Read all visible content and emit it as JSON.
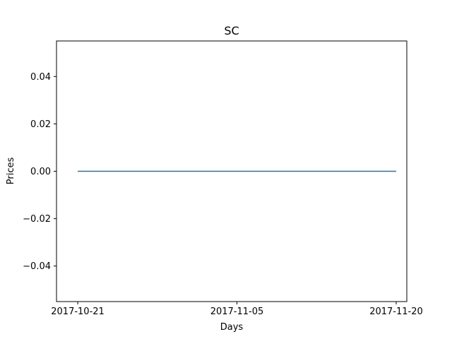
{
  "chart_data": {
    "type": "line",
    "title": "SC",
    "xlabel": "Days",
    "ylabel": "Prices",
    "x": [
      "2017-10-21",
      "2017-10-23",
      "2017-10-25",
      "2017-10-27",
      "2017-10-29",
      "2017-10-31",
      "2017-11-02",
      "2017-11-04",
      "2017-11-06",
      "2017-11-08",
      "2017-11-10",
      "2017-11-12",
      "2017-11-14",
      "2017-11-16",
      "2017-11-18",
      "2017-11-20"
    ],
    "series": [
      {
        "values": [
          0,
          0,
          0,
          0,
          0,
          0,
          0,
          0,
          0,
          0,
          0,
          0,
          0,
          0,
          0,
          0
        ]
      }
    ],
    "xlim": [
      "2017-10-19",
      "2017-11-21"
    ],
    "ylim": [
      -0.055,
      0.055
    ],
    "xticks": [
      "2017-10-21",
      "2017-11-05",
      "2017-11-20"
    ],
    "yticks": [
      -0.04,
      -0.02,
      0.0,
      0.02,
      0.04
    ],
    "ytick_labels": [
      "−0.04",
      "−0.02",
      "0.00",
      "0.02",
      "0.04"
    ],
    "grid": false,
    "line_color": "#1f77b4"
  }
}
